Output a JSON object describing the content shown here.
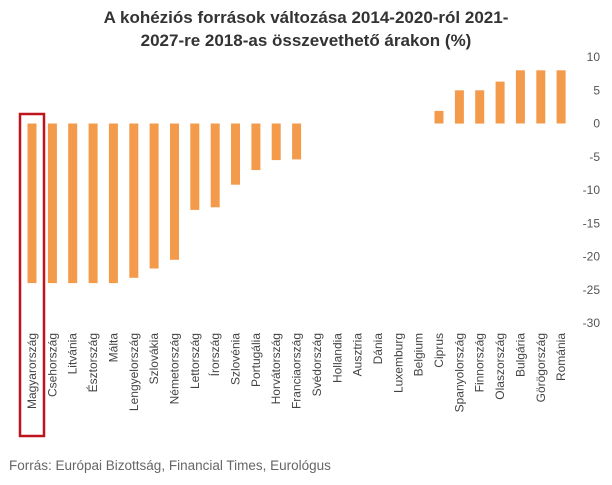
{
  "title": "A kohéziós források változása 2014-2020-ról 2021-\n2027-re 2018-as összevethető árakon (%)",
  "source": "Forrás: Európai Bizottság, Financial Times, Eurológus",
  "highlight_color": "#c0141c",
  "bar_color": "#f39b4b",
  "chart_data": {
    "type": "bar",
    "title": "A kohéziós források változása 2014-2020-ról 2021-2027-re 2018-as összevethető árakon (%)",
    "categories": [
      "Magyarország",
      "Csehország",
      "Litvánia",
      "Észtország",
      "Málta",
      "Lengyelország",
      "Szlovákia",
      "Németország",
      "Lettország",
      "Írország",
      "Szlovénia",
      "Portugália",
      "Horvátország",
      "Franciaország",
      "Svédország",
      "Hollandia",
      "Ausztria",
      "Dánia",
      "Luxemburg",
      "Belgium",
      "Ciprus",
      "Spanyolország",
      "Finnország",
      "Olaszország",
      "Bulgária",
      "Görögország",
      "Románia"
    ],
    "values": [
      -24,
      -24,
      -24,
      -24,
      -24,
      -23.2,
      -21.8,
      -20.5,
      -13,
      -12.6,
      -9.2,
      -7,
      -5.5,
      -5.4,
      0,
      0,
      0,
      0,
      0,
      0,
      1.9,
      5,
      5,
      6.3,
      8,
      8,
      8
    ],
    "highlighted_category": "Magyarország",
    "yticks": [
      10,
      5,
      0,
      -5,
      -10,
      -15,
      -20,
      -25,
      -30
    ],
    "ylim": [
      -30,
      10
    ],
    "y_axis_side": "right",
    "grid": false
  }
}
